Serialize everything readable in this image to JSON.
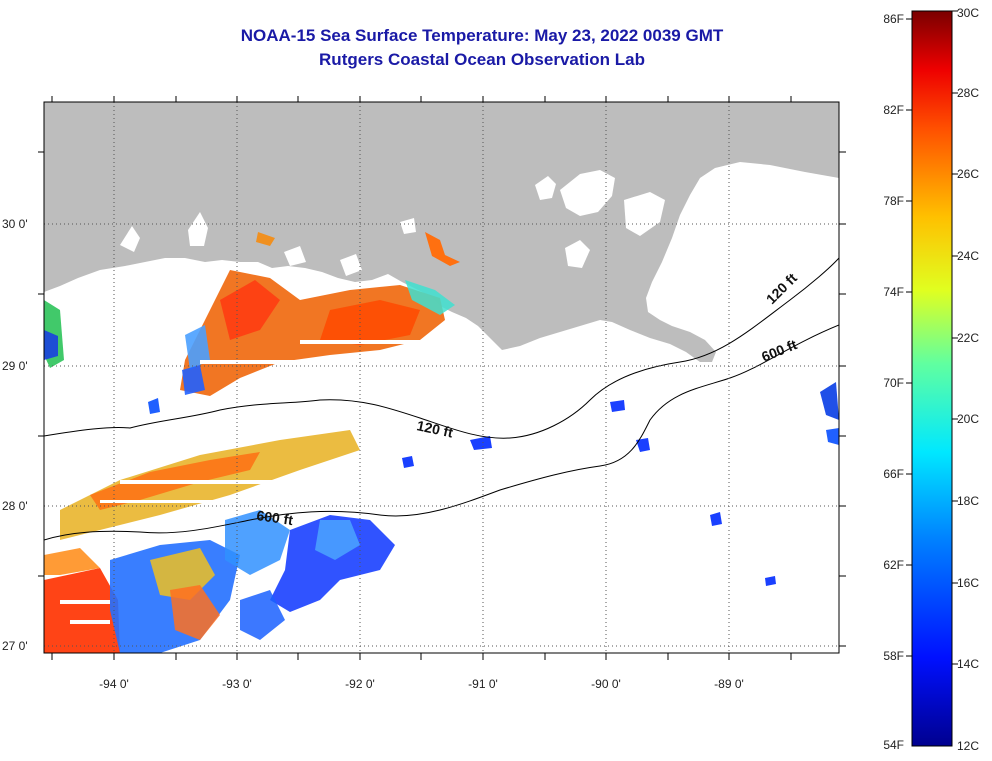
{
  "title": "NOAA-15 Sea Surface Temperature:  May 23, 2022 0039 GMT",
  "subtitle": "Rutgers Coastal Ocean Observation Lab",
  "map": {
    "lon_labels": [
      "-94 0'",
      "-93 0'",
      "-92 0'",
      "-91 0'",
      "-90 0'",
      "-89 0'"
    ],
    "lat_labels": [
      "30 0'",
      "29 0'",
      "28 0'",
      "27 0'"
    ],
    "contours": [
      {
        "id": "c120-east",
        "label": "120 ft"
      },
      {
        "id": "c600-east",
        "label": "600 ft"
      },
      {
        "id": "c120-mid",
        "label": "120 ft"
      },
      {
        "id": "c600-west",
        "label": "600 ft"
      }
    ],
    "colors": {
      "land": "#bdbdbd",
      "water": "#ffffff",
      "grid": "#555555"
    }
  },
  "colorbar": {
    "fahrenheit_labels": [
      "86F",
      "82F",
      "78F",
      "74F",
      "70F",
      "66F",
      "62F",
      "58F",
      "54F"
    ],
    "celsius_labels": [
      "30C",
      "28C",
      "26C",
      "24C",
      "22C",
      "20C",
      "18C",
      "16C",
      "14C",
      "12C"
    ],
    "min_c": 12,
    "max_c": 30
  }
}
